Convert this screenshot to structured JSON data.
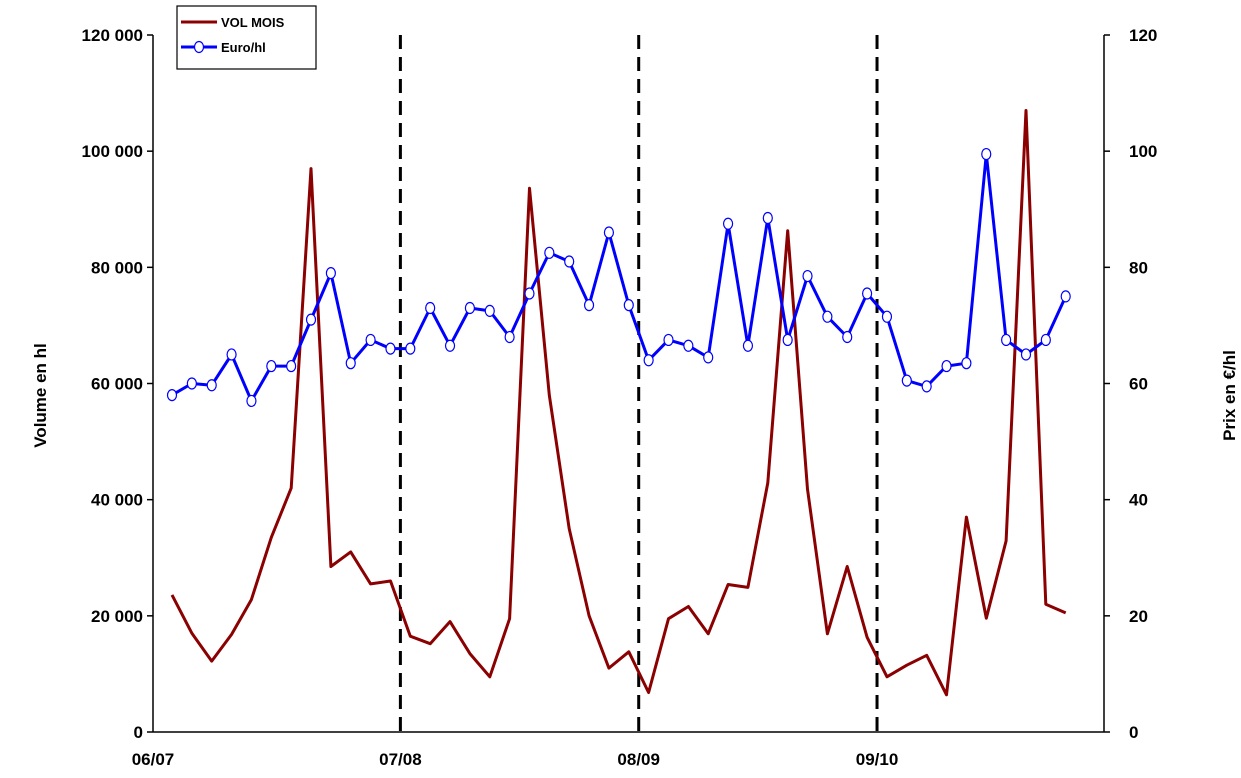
{
  "chart_data": {
    "type": "line",
    "x_ticks": [
      "06/07",
      "07/08",
      "08/09",
      "09/10"
    ],
    "ylabel_left": "Volume en hl",
    "ylabel_right": "Prix en €/hl",
    "ylim_left": [
      0,
      120000
    ],
    "ylim_right": [
      0,
      120
    ],
    "yticks_left": [
      "0",
      "20 000",
      "40 000",
      "60 000",
      "80 000",
      "100 000",
      "120 000"
    ],
    "yticks_right": [
      "0",
      "20",
      "40",
      "60",
      "80",
      "100",
      "120"
    ],
    "grid": false,
    "legend_position": "top-left",
    "season_dividers_after_month": [
      12,
      24,
      36
    ],
    "series": [
      {
        "name": "VOL MOIS",
        "axis": "left",
        "color": "#8b0000",
        "values": [
          23600,
          17000,
          12200,
          16800,
          22800,
          33500,
          42000,
          97000,
          28500,
          31000,
          25500,
          26000,
          16500,
          15200,
          19000,
          13500,
          9500,
          19500,
          93600,
          58000,
          35000,
          20000,
          11000,
          13800,
          6800,
          19500,
          21600,
          16900,
          25400,
          24900,
          42900,
          86300,
          41800,
          16900,
          28500,
          16300,
          9500,
          11500,
          13200,
          6400,
          37000,
          19600,
          32900,
          107000,
          22000,
          20500
        ]
      },
      {
        "name": "Euro/hl",
        "axis": "right",
        "color": "#0000ff",
        "marker": "circle",
        "values": [
          58,
          60,
          59.7,
          65,
          57,
          63,
          63,
          71,
          79,
          63.5,
          67.5,
          66,
          66,
          73,
          66.5,
          73,
          72.5,
          68,
          75.5,
          82.5,
          81,
          73.5,
          86,
          73.5,
          64,
          67.5,
          66.5,
          64.5,
          87.5,
          66.5,
          88.5,
          67.5,
          78.5,
          71.5,
          68,
          75.5,
          71.5,
          60.5,
          59.5,
          63,
          63.5,
          99.5,
          67.5,
          65,
          67.5,
          75
        ]
      }
    ]
  }
}
